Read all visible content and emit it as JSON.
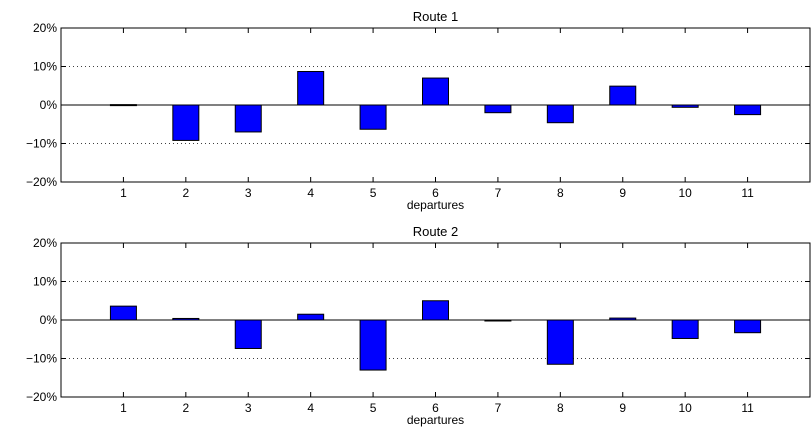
{
  "chart_data": [
    {
      "type": "bar",
      "title": "Route 1",
      "xlabel": "departures",
      "ylabel": "",
      "categories": [
        "1",
        "2",
        "3",
        "4",
        "5",
        "6",
        "7",
        "8",
        "9",
        "10",
        "11"
      ],
      "values": [
        0.1,
        -9.2,
        -7.0,
        8.7,
        -6.3,
        7.0,
        -2.0,
        -4.6,
        4.9,
        -0.6,
        -2.5
      ],
      "ylim": [
        -20,
        20
      ],
      "yticks": [
        "20%",
        "10%",
        "0%",
        "−10%",
        "−20%"
      ],
      "ytick_values": [
        20,
        10,
        0,
        -10,
        -20
      ],
      "grid": "dotted horizontal",
      "bar_color": "#0000ff"
    },
    {
      "type": "bar",
      "title": "Route 2",
      "xlabel": "departures",
      "ylabel": "",
      "categories": [
        "1",
        "2",
        "3",
        "4",
        "5",
        "6",
        "7",
        "8",
        "9",
        "10",
        "11"
      ],
      "values": [
        3.6,
        0.4,
        -7.4,
        1.5,
        -13.0,
        5.0,
        -0.2,
        -11.5,
        0.5,
        -4.8,
        -3.3
      ],
      "ylim": [
        -20,
        20
      ],
      "yticks": [
        "20%",
        "10%",
        "0%",
        "−10%",
        "−20%"
      ],
      "ytick_values": [
        20,
        10,
        0,
        -10,
        -20
      ],
      "grid": "dotted horizontal",
      "bar_color": "#0000ff"
    }
  ]
}
